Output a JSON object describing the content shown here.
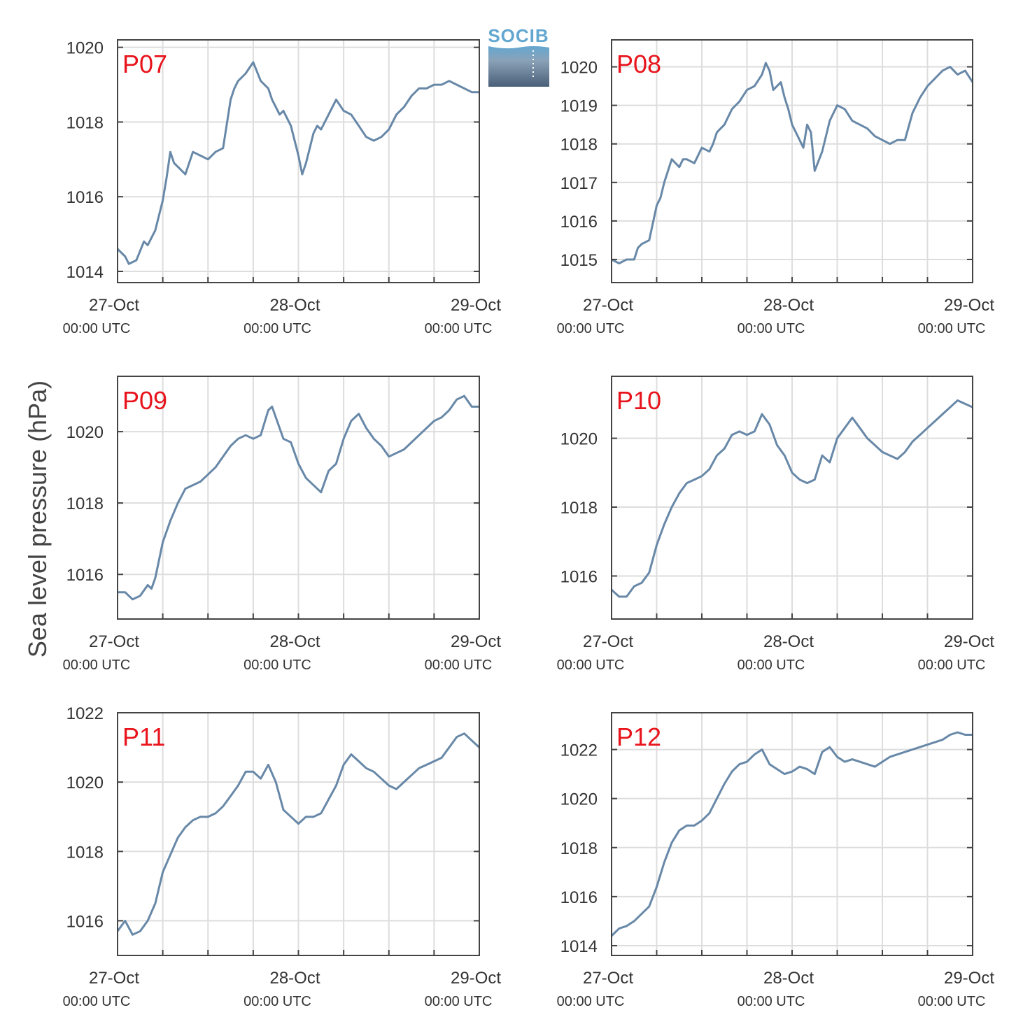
{
  "figure": {
    "ylabel": "Sea level pressure (hPa)",
    "logo_text": "SOCIB"
  },
  "colors": {
    "line": "#6888a8",
    "panel_label": "#e8141c",
    "grid": "#dddddd",
    "axis": "#444444",
    "logo_light": "#63a7d0",
    "logo_dark": "#4a5f78"
  },
  "chart_data": [
    {
      "type": "line",
      "panel_label": "P07",
      "series": [
        {
          "x": [
            0,
            2,
            3,
            5,
            7,
            8,
            10,
            12,
            13,
            14,
            15,
            16,
            18,
            20,
            22,
            24,
            26,
            28,
            30,
            31,
            32,
            33,
            34,
            36,
            38,
            40,
            41,
            42,
            43,
            44,
            45,
            46,
            47,
            48,
            49,
            50,
            51,
            52,
            53,
            54,
            56,
            58,
            60,
            62,
            64,
            66,
            68,
            70,
            72,
            74,
            76,
            78,
            80,
            82,
            84,
            86,
            88,
            90,
            92,
            94,
            95,
            96
          ],
          "y": [
            1014.6,
            1014.4,
            1014.2,
            1014.3,
            1014.8,
            1014.7,
            1015.1,
            1015.9,
            1016.5,
            1017.2,
            1016.9,
            1016.8,
            1016.6,
            1017.2,
            1017.1,
            1017.0,
            1017.2,
            1017.3,
            1018.6,
            1018.9,
            1019.1,
            1019.2,
            1019.3,
            1019.6,
            1019.1,
            1018.9,
            1018.6,
            1018.4,
            1018.2,
            1018.3,
            1018.1,
            1017.9,
            1017.5,
            1017.1,
            1016.6,
            1016.9,
            1017.3,
            1017.7,
            1017.9,
            1017.8,
            1018.2,
            1018.6,
            1018.3,
            1018.2,
            1017.9,
            1017.6,
            1017.5,
            1017.6,
            1017.8,
            1018.2,
            1018.4,
            1018.7,
            1018.9,
            1018.9,
            1019.0,
            1019.0,
            1019.1,
            1019.0,
            1018.9,
            1018.8,
            1018.8,
            1018.8
          ]
        }
      ],
      "xlim": [
        0,
        96
      ],
      "ylim": [
        1013.7,
        1020.2
      ],
      "yticks": [
        1014,
        1016,
        1018,
        1020
      ],
      "ytick_labels": [
        "1014",
        "1016",
        "1018",
        "1020"
      ]
    },
    {
      "type": "line",
      "panel_label": "P08",
      "series": [
        {
          "x": [
            0,
            2,
            4,
            6,
            7,
            8,
            10,
            12,
            13,
            14,
            16,
            18,
            19,
            20,
            22,
            24,
            26,
            27,
            28,
            30,
            32,
            34,
            36,
            38,
            40,
            41,
            42,
            43,
            44,
            45,
            46,
            47,
            48,
            49,
            50,
            51,
            52,
            53,
            54,
            56,
            58,
            60,
            62,
            64,
            66,
            68,
            70,
            72,
            74,
            76,
            78,
            80,
            82,
            84,
            86,
            88,
            90,
            92,
            94,
            96
          ],
          "y": [
            1015.0,
            1014.9,
            1015.0,
            1015.0,
            1015.3,
            1015.4,
            1015.5,
            1016.4,
            1016.6,
            1017.0,
            1017.6,
            1017.4,
            1017.6,
            1017.6,
            1017.5,
            1017.9,
            1017.8,
            1018.0,
            1018.3,
            1018.5,
            1018.9,
            1019.1,
            1019.4,
            1019.5,
            1019.8,
            1020.1,
            1019.9,
            1019.4,
            1019.5,
            1019.6,
            1019.2,
            1018.9,
            1018.5,
            1018.3,
            1018.1,
            1017.9,
            1018.5,
            1018.3,
            1017.3,
            1017.8,
            1018.6,
            1019.0,
            1018.9,
            1018.6,
            1018.5,
            1018.4,
            1018.2,
            1018.1,
            1018.0,
            1018.1,
            1018.1,
            1018.8,
            1019.2,
            1019.5,
            1019.7,
            1019.9,
            1020.0,
            1019.8,
            1019.9,
            1019.6
          ]
        }
      ],
      "xlim": [
        0,
        96
      ],
      "ylim": [
        1014.4,
        1020.7
      ],
      "yticks": [
        1015,
        1016,
        1017,
        1018,
        1019,
        1020
      ],
      "ytick_labels": [
        "1015",
        "1016",
        "1017",
        "1018",
        "1019",
        "1020"
      ]
    },
    {
      "type": "line",
      "panel_label": "P09",
      "series": [
        {
          "x": [
            0,
            2,
            4,
            6,
            8,
            9,
            10,
            12,
            13,
            14,
            16,
            18,
            20,
            22,
            24,
            26,
            28,
            30,
            32,
            34,
            36,
            38,
            40,
            41,
            42,
            43,
            44,
            46,
            48,
            50,
            52,
            54,
            56,
            58,
            60,
            62,
            64,
            66,
            68,
            70,
            72,
            74,
            76,
            78,
            80,
            82,
            84,
            86,
            88,
            90,
            92,
            94,
            96
          ],
          "y": [
            1015.5,
            1015.5,
            1015.3,
            1015.4,
            1015.7,
            1015.6,
            1015.9,
            1016.9,
            1017.2,
            1017.5,
            1018.0,
            1018.4,
            1018.5,
            1018.6,
            1018.8,
            1019.0,
            1019.3,
            1019.6,
            1019.8,
            1019.9,
            1019.8,
            1019.9,
            1020.6,
            1020.7,
            1020.4,
            1020.1,
            1019.8,
            1019.7,
            1019.1,
            1018.7,
            1018.5,
            1018.3,
            1018.9,
            1019.1,
            1019.8,
            1020.3,
            1020.5,
            1020.1,
            1019.8,
            1019.6,
            1019.3,
            1019.4,
            1019.5,
            1019.7,
            1019.9,
            1020.1,
            1020.3,
            1020.4,
            1020.6,
            1020.9,
            1021.0,
            1020.7,
            1020.7
          ]
        }
      ],
      "xlim": [
        0,
        96
      ],
      "ylim": [
        1014.75,
        1021.55
      ],
      "yticks": [
        1016,
        1018,
        1020
      ],
      "ytick_labels": [
        "1016",
        "1018",
        "1020"
      ]
    },
    {
      "type": "line",
      "panel_label": "P10",
      "series": [
        {
          "x": [
            0,
            2,
            4,
            6,
            8,
            10,
            12,
            14,
            16,
            18,
            20,
            22,
            24,
            26,
            28,
            30,
            32,
            34,
            36,
            38,
            40,
            42,
            44,
            46,
            48,
            50,
            52,
            54,
            56,
            58,
            60,
            62,
            64,
            66,
            68,
            70,
            72,
            74,
            76,
            78,
            80,
            82,
            84,
            86,
            88,
            90,
            92,
            94,
            96
          ],
          "y": [
            1015.6,
            1015.4,
            1015.4,
            1015.7,
            1015.8,
            1016.1,
            1016.9,
            1017.5,
            1018.0,
            1018.4,
            1018.7,
            1018.8,
            1018.9,
            1019.1,
            1019.5,
            1019.7,
            1020.1,
            1020.2,
            1020.1,
            1020.2,
            1020.7,
            1020.4,
            1019.8,
            1019.5,
            1019.0,
            1018.8,
            1018.7,
            1018.8,
            1019.5,
            1019.3,
            1020.0,
            1020.3,
            1020.6,
            1020.3,
            1020.0,
            1019.8,
            1019.6,
            1019.5,
            1019.4,
            1019.6,
            1019.9,
            1020.1,
            1020.3,
            1020.5,
            1020.7,
            1020.9,
            1021.1,
            1021.0,
            1020.9
          ]
        }
      ],
      "xlim": [
        0,
        96
      ],
      "ylim": [
        1014.75,
        1021.8
      ],
      "yticks": [
        1016,
        1018,
        1020
      ],
      "ytick_labels": [
        "1016",
        "1018",
        "1020"
      ]
    },
    {
      "type": "line",
      "panel_label": "P11",
      "series": [
        {
          "x": [
            0,
            2,
            4,
            6,
            8,
            10,
            12,
            14,
            16,
            18,
            20,
            22,
            24,
            26,
            28,
            30,
            32,
            34,
            36,
            38,
            40,
            42,
            44,
            46,
            48,
            50,
            52,
            54,
            56,
            58,
            60,
            62,
            64,
            66,
            68,
            70,
            72,
            74,
            76,
            78,
            80,
            82,
            84,
            86,
            88,
            90,
            92,
            94,
            96
          ],
          "y": [
            1015.7,
            1016.0,
            1015.6,
            1015.7,
            1016.0,
            1016.5,
            1017.4,
            1017.9,
            1018.4,
            1018.7,
            1018.9,
            1019.0,
            1019.0,
            1019.1,
            1019.3,
            1019.6,
            1019.9,
            1020.3,
            1020.3,
            1020.1,
            1020.5,
            1020.0,
            1019.2,
            1019.0,
            1018.8,
            1019.0,
            1019.0,
            1019.1,
            1019.5,
            1019.9,
            1020.5,
            1020.8,
            1020.6,
            1020.4,
            1020.3,
            1020.1,
            1019.9,
            1019.8,
            1020.0,
            1020.2,
            1020.4,
            1020.5,
            1020.6,
            1020.7,
            1021.0,
            1021.3,
            1021.4,
            1021.2,
            1021.0
          ]
        }
      ],
      "xlim": [
        0,
        96
      ],
      "ylim": [
        1015.0,
        1022.0
      ],
      "yticks": [
        1016,
        1018,
        1020,
        1022
      ],
      "ytick_labels": [
        "1016",
        "1018",
        "1020",
        "1022"
      ]
    },
    {
      "type": "line",
      "panel_label": "P12",
      "series": [
        {
          "x": [
            0,
            2,
            4,
            6,
            8,
            10,
            12,
            14,
            16,
            18,
            20,
            22,
            24,
            26,
            28,
            30,
            32,
            34,
            36,
            38,
            40,
            42,
            44,
            46,
            48,
            50,
            52,
            54,
            56,
            58,
            60,
            62,
            64,
            66,
            68,
            70,
            72,
            74,
            76,
            78,
            80,
            82,
            84,
            86,
            88,
            90,
            92,
            94,
            96
          ],
          "y": [
            1014.4,
            1014.7,
            1014.8,
            1015.0,
            1015.3,
            1015.6,
            1016.4,
            1017.4,
            1018.2,
            1018.7,
            1018.9,
            1018.9,
            1019.1,
            1019.4,
            1020.0,
            1020.6,
            1021.1,
            1021.4,
            1021.5,
            1021.8,
            1022.0,
            1021.4,
            1021.2,
            1021.0,
            1021.1,
            1021.3,
            1021.2,
            1021.0,
            1021.9,
            1022.1,
            1021.7,
            1021.5,
            1021.6,
            1021.5,
            1021.4,
            1021.3,
            1021.5,
            1021.7,
            1021.8,
            1021.9,
            1022.0,
            1022.1,
            1022.2,
            1022.3,
            1022.4,
            1022.6,
            1022.7,
            1022.6,
            1022.6
          ]
        }
      ],
      "xlim": [
        0,
        96
      ],
      "ylim": [
        1013.6,
        1023.5
      ],
      "yticks": [
        1014,
        1016,
        1018,
        1020,
        1022
      ],
      "ytick_labels": [
        "1014",
        "1016",
        "1018",
        "1020",
        "1022"
      ]
    }
  ],
  "shared_x": {
    "grid_x": [
      0,
      12,
      24,
      36,
      48,
      60,
      72,
      84,
      96
    ],
    "major_ticks": [
      0,
      48,
      96
    ],
    "date_labels": [
      "27-Oct",
      "28-Oct",
      "29-Oct"
    ],
    "time_labels": [
      "00:00 UTC",
      "00:00 UTC",
      "00:00 UTC"
    ]
  }
}
